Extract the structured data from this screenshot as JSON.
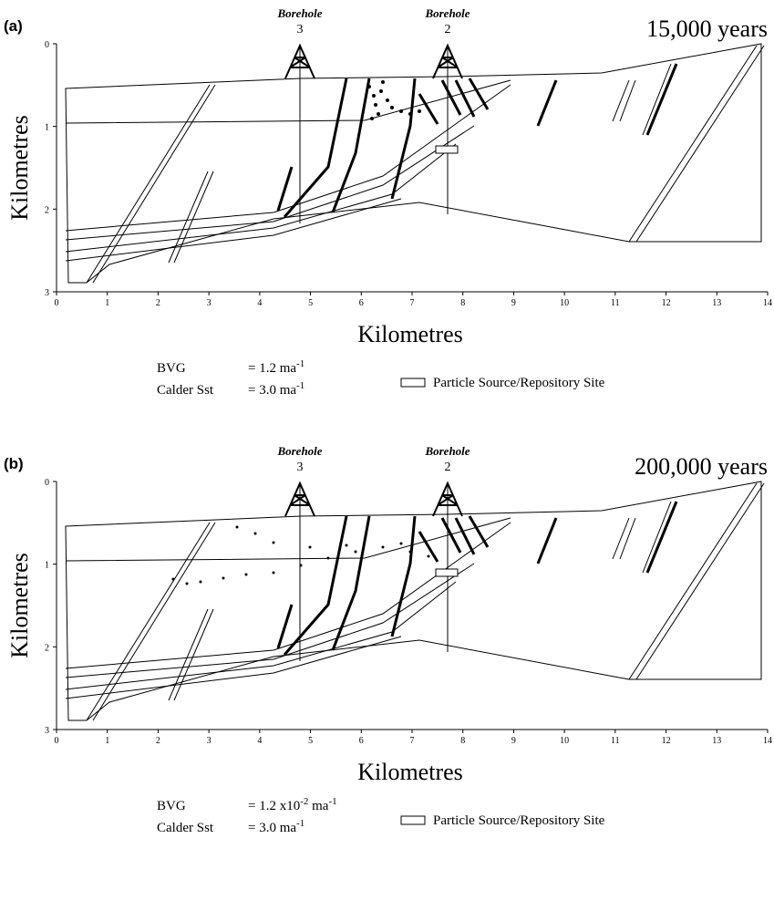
{
  "panels": [
    {
      "label": "(a)",
      "time": "15,000 years",
      "y_axis_title": "Kilometres",
      "x_axis_title": "Kilometres",
      "xticks": [
        0,
        1,
        2,
        3,
        4,
        5,
        6,
        7,
        8,
        9,
        10,
        11,
        12,
        13,
        14
      ],
      "yticks": [
        0,
        1,
        2,
        3
      ],
      "boreholes": [
        {
          "name": "Borehole",
          "number": "3"
        },
        {
          "name": "Borehole",
          "number": "2"
        }
      ],
      "parameters": [
        {
          "name": "BVG",
          "value": [
            {
              "text": "= 1.2 ma"
            },
            {
              "sup": "-1"
            }
          ]
        },
        {
          "name": "Calder Sst",
          "value": [
            {
              "text": "= 3.0 ma"
            },
            {
              "sup": "-1"
            }
          ]
        }
      ],
      "legend": "Particle Source/Repository Site"
    },
    {
      "label": "(b)",
      "time": "200,000 years",
      "y_axis_title": "Kilometres",
      "x_axis_title": "Kilometres",
      "xticks": [
        0,
        1,
        2,
        3,
        4,
        5,
        6,
        7,
        8,
        9,
        10,
        11,
        12,
        13,
        14
      ],
      "yticks": [
        0,
        1,
        2,
        3
      ],
      "boreholes": [
        {
          "name": "Borehole",
          "number": "3"
        },
        {
          "name": "Borehole",
          "number": "2"
        }
      ],
      "parameters": [
        {
          "name": "BVG",
          "value": [
            {
              "text": "= 1.2 x10"
            },
            {
              "sup": "-2"
            },
            {
              "text": " ma"
            },
            {
              "sup": "-1"
            }
          ]
        },
        {
          "name": "Calder Sst",
          "value": [
            {
              "text": "= 3.0 ma"
            },
            {
              "sup": "-1"
            }
          ]
        }
      ],
      "legend": "Particle Source/Repository Site"
    }
  ]
}
